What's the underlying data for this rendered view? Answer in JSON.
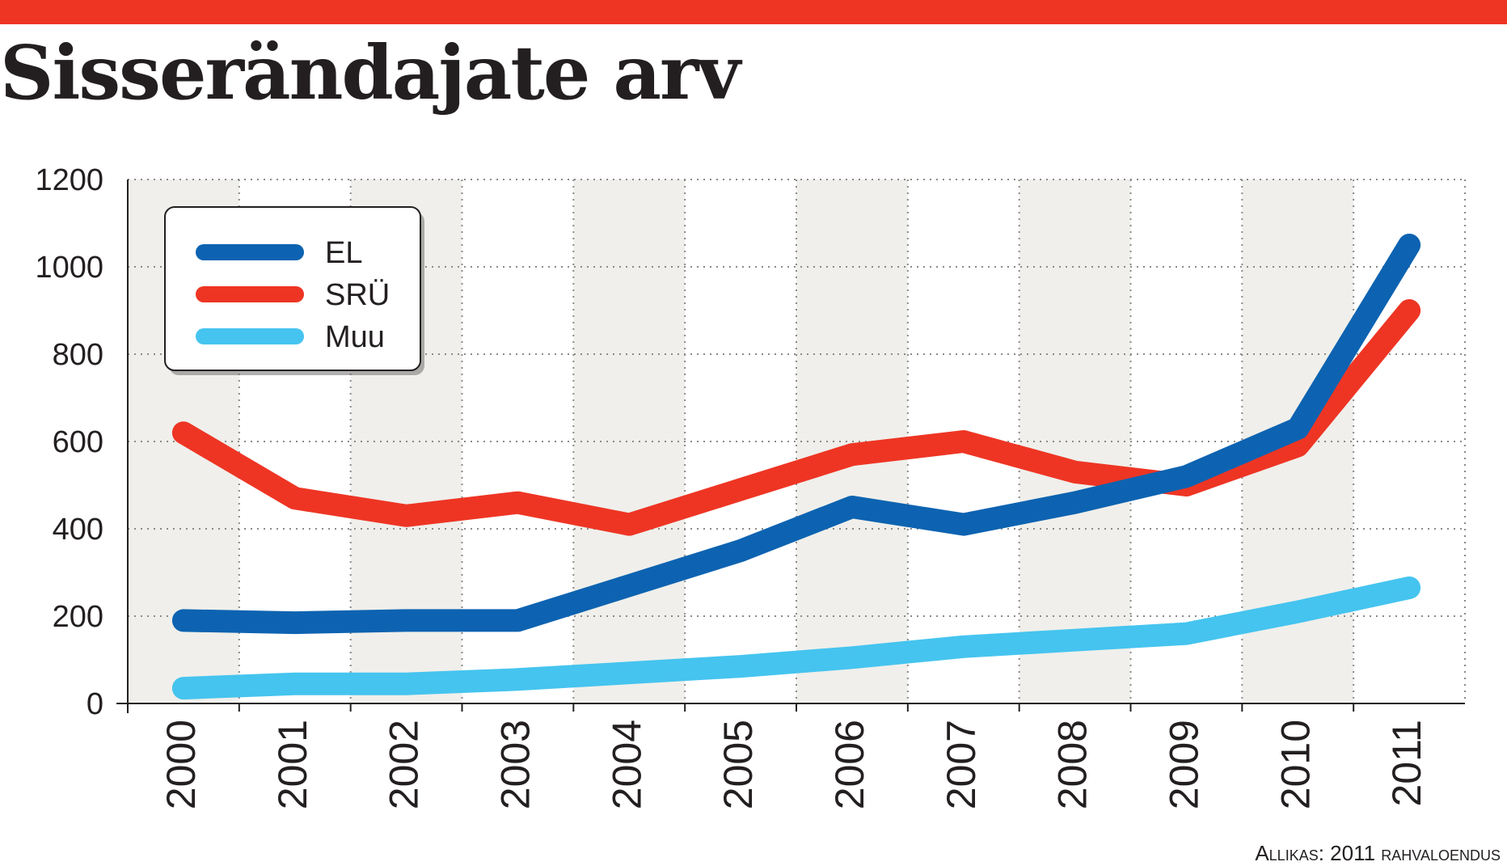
{
  "header": {
    "title": "Sisserändajate arv",
    "bar_color": "#ee3524"
  },
  "source": "Allikas: 2011 rahvaloendus",
  "chart_data": {
    "type": "line",
    "title": "Sisserändajate arv",
    "xlabel": "",
    "ylabel": "",
    "x": [
      "2000",
      "2001",
      "2002",
      "2003",
      "2004",
      "2005",
      "2006",
      "2007",
      "2008",
      "2009",
      "2010",
      "2011"
    ],
    "ylim": [
      0,
      1200
    ],
    "yticks": [
      0,
      200,
      400,
      600,
      800,
      1000,
      1200
    ],
    "grid": true,
    "legend_position": "top-left",
    "series": [
      {
        "name": "EL",
        "color": "#0d63b1",
        "values": [
          190,
          185,
          190,
          190,
          270,
          350,
          450,
          410,
          460,
          520,
          630,
          1050
        ]
      },
      {
        "name": "SRÜ",
        "color": "#ee3524",
        "values": [
          620,
          470,
          430,
          460,
          410,
          490,
          570,
          600,
          530,
          500,
          590,
          900
        ]
      },
      {
        "name": "Muu",
        "color": "#45c4ef",
        "values": [
          35,
          45,
          45,
          55,
          70,
          85,
          105,
          130,
          145,
          160,
          210,
          265
        ]
      }
    ]
  }
}
